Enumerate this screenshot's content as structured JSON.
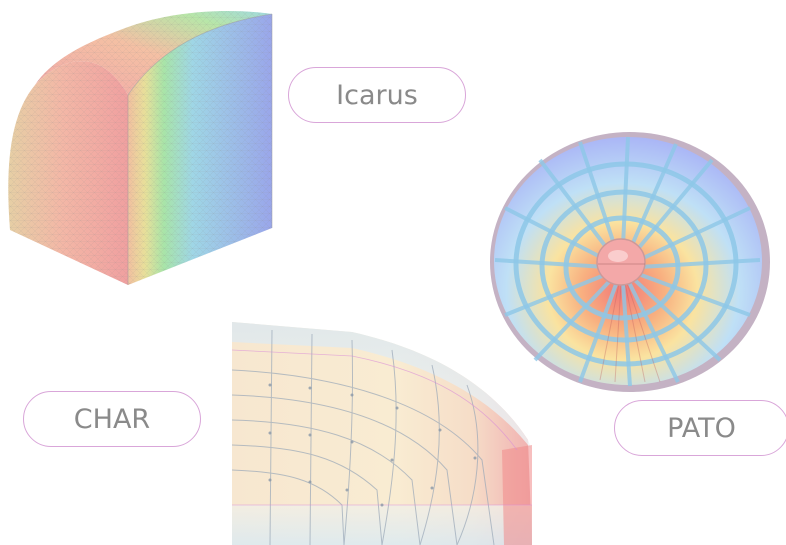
{
  "labels": {
    "icarus": "Icarus",
    "char": "CHAR",
    "pato": "PATO"
  },
  "colors": {
    "pill_border": "#d9a6d9",
    "label_text": "#8a8a8a"
  }
}
